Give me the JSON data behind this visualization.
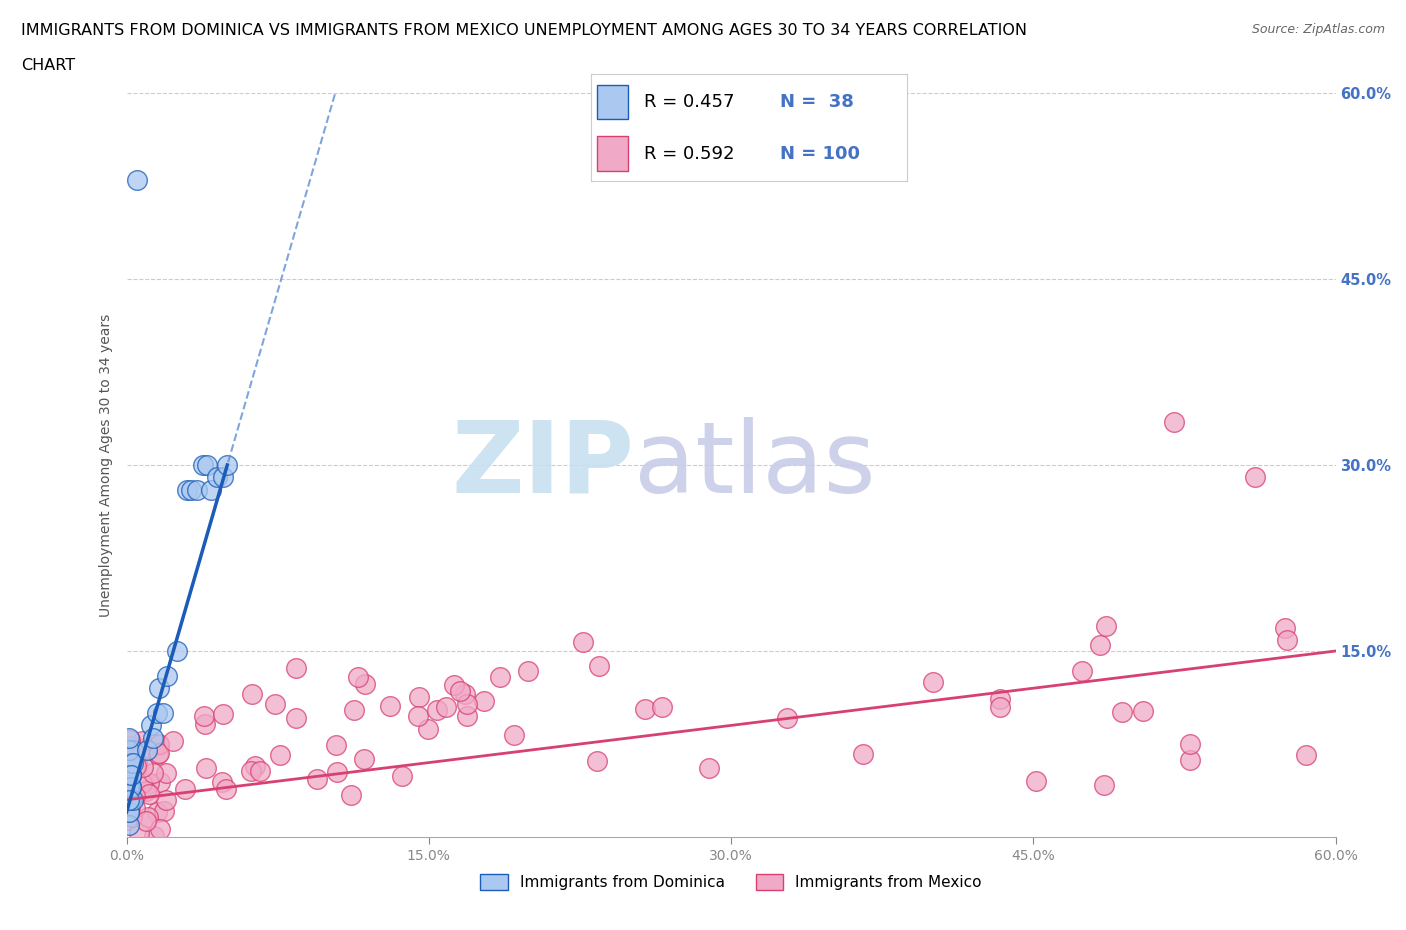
{
  "title_line1": "IMMIGRANTS FROM DOMINICA VS IMMIGRANTS FROM MEXICO UNEMPLOYMENT AMONG AGES 30 TO 34 YEARS CORRELATION",
  "title_line2": "CHART",
  "source": "Source: ZipAtlas.com",
  "ylabel": "Unemployment Among Ages 30 to 34 years",
  "xlim": [
    0.0,
    0.6
  ],
  "ylim": [
    0.0,
    0.6
  ],
  "xtick_vals": [
    0.0,
    0.15,
    0.3,
    0.45,
    0.6
  ],
  "xtick_labels": [
    "0.0%",
    "15.0%",
    "30.0%",
    "45.0%",
    "60.0%"
  ],
  "ytick_vals": [
    0.15,
    0.3,
    0.45,
    0.6
  ],
  "ytick_labels": [
    "15.0%",
    "30.0%",
    "45.0%",
    "60.0%"
  ],
  "dominica_R": 0.457,
  "dominica_N": 38,
  "mexico_R": 0.592,
  "mexico_N": 100,
  "dominica_color": "#aac8f0",
  "mexico_color": "#f0aac8",
  "dominica_line_color": "#1a5cb8",
  "dominica_dash_color": "#6090d0",
  "mexico_line_color": "#d84070",
  "watermark_zip_color": "#c8e0f0",
  "watermark_atlas_color": "#c8cce8",
  "bg_color": "#ffffff",
  "grid_color": "#cccccc",
  "right_tick_color": "#4472c4",
  "legend_edge_color": "#cccccc",
  "bottom_legend_labels": [
    "Immigrants from Dominica",
    "Immigrants from Mexico"
  ]
}
